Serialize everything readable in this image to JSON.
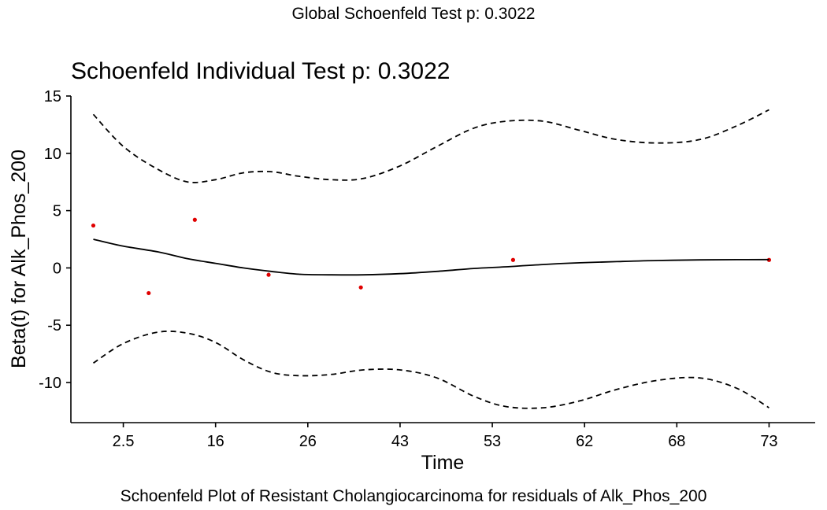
{
  "figure": {
    "global_title": "Global Schoenfeld Test p: 0.3022",
    "caption": "Schoenfeld Plot of Resistant Cholangiocarcinoma for residuals of Alk_Phos_200"
  },
  "chart_data": {
    "type": "scatter",
    "title": "Schoenfeld Individual Test p: 0.3022",
    "xlabel": "Time",
    "ylabel": "Beta(t) for Alk_Phos_200",
    "x_tick_labels": [
      "2.5",
      "16",
      "26",
      "43",
      "53",
      "62",
      "68",
      "73"
    ],
    "y_ticks": [
      -10,
      -5,
      0,
      5,
      10,
      15
    ],
    "y_tick_labels": [
      "-10",
      "-5",
      "0",
      "5",
      "10",
      "15"
    ],
    "ylim": [
      -13.5,
      15
    ],
    "grid": false,
    "point_color": "#e00000",
    "line_color": "#000000",
    "series": [
      {
        "kind": "points",
        "x": [
          1.35,
          2.55,
          3.55,
          5.15,
          7.15,
          10.45,
          16.0
        ],
        "y": [
          3.7,
          -2.2,
          4.2,
          -0.6,
          -1.7,
          0.7,
          0.7
        ]
      },
      {
        "kind": "smooth",
        "x": [
          1.35,
          2.0,
          2.75,
          3.4,
          4.0,
          4.6,
          5.2,
          5.8,
          6.5,
          7.2,
          8.0,
          8.8,
          9.6,
          10.3,
          11.1,
          11.9,
          12.7,
          13.6,
          14.5,
          15.3,
          16.0
        ],
        "y": [
          2.5,
          1.9,
          1.4,
          0.8,
          0.4,
          0.0,
          -0.3,
          -0.55,
          -0.6,
          -0.6,
          -0.5,
          -0.3,
          -0.05,
          0.1,
          0.3,
          0.45,
          0.55,
          0.65,
          0.7,
          0.72,
          0.73
        ]
      },
      {
        "kind": "upper-band",
        "x": [
          1.35,
          2.0,
          2.75,
          3.4,
          4.0,
          4.6,
          5.2,
          5.8,
          6.5,
          7.2,
          8.0,
          8.8,
          9.6,
          10.3,
          11.1,
          11.9,
          12.7,
          13.6,
          14.5,
          15.3,
          16.0
        ],
        "y": [
          13.4,
          10.6,
          8.6,
          7.5,
          7.7,
          8.3,
          8.4,
          8.0,
          7.7,
          7.8,
          8.9,
          10.6,
          12.2,
          12.8,
          12.8,
          12.0,
          11.2,
          10.9,
          11.2,
          12.4,
          13.8
        ]
      },
      {
        "kind": "lower-band",
        "x": [
          1.35,
          2.0,
          2.75,
          3.4,
          4.0,
          4.6,
          5.2,
          5.8,
          6.5,
          7.2,
          8.0,
          8.8,
          9.6,
          10.3,
          11.1,
          11.9,
          12.7,
          13.6,
          14.5,
          15.3,
          16.0
        ],
        "y": [
          -8.3,
          -6.6,
          -5.6,
          -5.7,
          -6.5,
          -8.0,
          -9.1,
          -9.4,
          -9.3,
          -8.9,
          -8.9,
          -9.6,
          -11.2,
          -12.1,
          -12.2,
          -11.6,
          -10.6,
          -9.8,
          -9.6,
          -10.5,
          -12.2
        ]
      }
    ]
  }
}
